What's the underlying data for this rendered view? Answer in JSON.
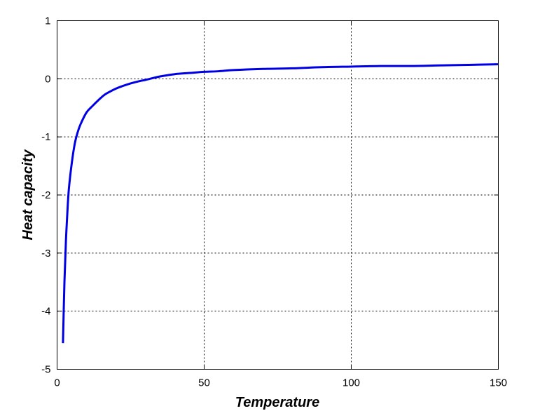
{
  "chart_data": {
    "type": "line",
    "title": "",
    "xlabel": "Temperature",
    "ylabel": "Heat capacity",
    "xlim": [
      0,
      150
    ],
    "ylim": [
      -5,
      1
    ],
    "xticks": [
      0,
      50,
      100,
      150
    ],
    "yticks": [
      -5,
      -4,
      -3,
      -2,
      -1,
      0,
      1
    ],
    "xtick_labels": [
      "0",
      "50",
      "100",
      "150"
    ],
    "ytick_labels": [
      "-5",
      "-4",
      "-3",
      "-2",
      "-1",
      "0",
      "1"
    ],
    "grid": true,
    "grid_style": "dotted",
    "legend": "none",
    "series": [
      {
        "color": "#0000e6",
        "x": [
          2,
          2.5,
          3,
          3.5,
          4,
          5,
          6,
          7,
          8,
          10,
          12,
          14,
          16,
          18,
          20,
          22,
          25,
          28,
          30,
          35,
          40,
          45,
          50,
          55,
          60,
          70,
          80,
          90,
          100,
          110,
          120,
          130,
          140,
          150
        ],
        "y": [
          -4.55,
          -3.5,
          -2.8,
          -2.3,
          -1.9,
          -1.45,
          -1.12,
          -0.92,
          -0.78,
          -0.58,
          -0.47,
          -0.37,
          -0.28,
          -0.22,
          -0.17,
          -0.13,
          -0.08,
          -0.04,
          -0.02,
          0.04,
          0.08,
          0.1,
          0.12,
          0.13,
          0.15,
          0.17,
          0.18,
          0.2,
          0.21,
          0.22,
          0.22,
          0.23,
          0.24,
          0.25
        ]
      }
    ]
  }
}
